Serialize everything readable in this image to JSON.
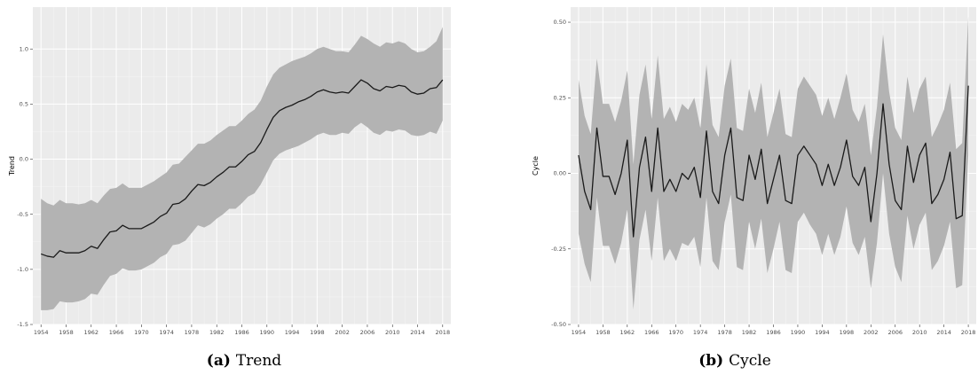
{
  "chart_data": [
    {
      "type": "line",
      "panel_id": "trend",
      "caption_tag": "(a)",
      "caption_text": "Trend",
      "ylabel": "Trend",
      "xlabel": "",
      "xlim": [
        1952.7,
        2019.3
      ],
      "ylim": [
        -1.5,
        1.38
      ],
      "x_ticks": [
        1954,
        1958,
        1962,
        1966,
        1970,
        1974,
        1978,
        1982,
        1986,
        1990,
        1994,
        1998,
        2002,
        2006,
        2010,
        2014,
        2018
      ],
      "y_ticks": [
        -1.5,
        -1.0,
        -0.5,
        0.0,
        0.5,
        1.0
      ],
      "y_tick_labels": [
        "-1.5",
        "-1.0",
        "-0.5",
        "0.0",
        "0.5",
        "1.0"
      ],
      "grid": true,
      "x": [
        1954,
        1955,
        1956,
        1957,
        1958,
        1959,
        1960,
        1961,
        1962,
        1963,
        1964,
        1965,
        1966,
        1967,
        1968,
        1969,
        1970,
        1971,
        1972,
        1973,
        1974,
        1975,
        1976,
        1977,
        1978,
        1979,
        1980,
        1981,
        1982,
        1983,
        1984,
        1985,
        1986,
        1987,
        1988,
        1989,
        1990,
        1991,
        1992,
        1993,
        1994,
        1995,
        1996,
        1997,
        1998,
        1999,
        2000,
        2001,
        2002,
        2003,
        2004,
        2005,
        2006,
        2007,
        2008,
        2009,
        2010,
        2011,
        2012,
        2013,
        2014,
        2015,
        2016,
        2017,
        2018
      ],
      "series": [
        {
          "role": "estimate",
          "color": "#1a1a1a",
          "values": [
            -0.86,
            -0.88,
            -0.89,
            -0.83,
            -0.85,
            -0.85,
            -0.85,
            -0.83,
            -0.79,
            -0.81,
            -0.73,
            -0.66,
            -0.65,
            -0.6,
            -0.63,
            -0.63,
            -0.63,
            -0.6,
            -0.57,
            -0.52,
            -0.49,
            -0.41,
            -0.4,
            -0.36,
            -0.29,
            -0.23,
            -0.24,
            -0.21,
            -0.16,
            -0.12,
            -0.07,
            -0.07,
            -0.02,
            0.04,
            0.07,
            0.15,
            0.27,
            0.38,
            0.44,
            0.47,
            0.49,
            0.52,
            0.54,
            0.57,
            0.61,
            0.63,
            0.61,
            0.6,
            0.61,
            0.6,
            0.66,
            0.72,
            0.69,
            0.64,
            0.62,
            0.66,
            0.65,
            0.67,
            0.66,
            0.61,
            0.59,
            0.6,
            0.64,
            0.65,
            0.72
          ]
        },
        {
          "role": "upper-band",
          "color": "#b3b3b3",
          "values": [
            -0.36,
            -0.4,
            -0.42,
            -0.37,
            -0.4,
            -0.4,
            -0.41,
            -0.4,
            -0.37,
            -0.4,
            -0.33,
            -0.27,
            -0.26,
            -0.22,
            -0.26,
            -0.26,
            -0.26,
            -0.23,
            -0.2,
            -0.16,
            -0.12,
            -0.05,
            -0.04,
            0.02,
            0.08,
            0.14,
            0.14,
            0.17,
            0.22,
            0.26,
            0.3,
            0.3,
            0.35,
            0.41,
            0.45,
            0.53,
            0.66,
            0.77,
            0.83,
            0.86,
            0.89,
            0.91,
            0.93,
            0.96,
            1.0,
            1.02,
            1.0,
            0.98,
            0.98,
            0.97,
            1.04,
            1.12,
            1.09,
            1.05,
            1.02,
            1.06,
            1.05,
            1.07,
            1.05,
            1.0,
            0.97,
            0.98,
            1.02,
            1.07,
            1.2
          ]
        },
        {
          "role": "lower-band",
          "color": "#b3b3b3",
          "values": [
            -1.37,
            -1.37,
            -1.36,
            -1.29,
            -1.3,
            -1.3,
            -1.29,
            -1.27,
            -1.22,
            -1.23,
            -1.14,
            -1.06,
            -1.04,
            -0.99,
            -1.01,
            -1.01,
            -1.0,
            -0.97,
            -0.94,
            -0.89,
            -0.86,
            -0.78,
            -0.77,
            -0.74,
            -0.67,
            -0.6,
            -0.62,
            -0.59,
            -0.54,
            -0.5,
            -0.45,
            -0.45,
            -0.4,
            -0.34,
            -0.31,
            -0.23,
            -0.12,
            -0.01,
            0.05,
            0.08,
            0.1,
            0.12,
            0.15,
            0.18,
            0.22,
            0.24,
            0.22,
            0.22,
            0.24,
            0.23,
            0.29,
            0.33,
            0.29,
            0.24,
            0.22,
            0.26,
            0.25,
            0.27,
            0.26,
            0.22,
            0.21,
            0.22,
            0.25,
            0.23,
            0.35
          ]
        }
      ]
    },
    {
      "type": "line",
      "panel_id": "cycle",
      "caption_tag": "(b)",
      "caption_text": "Cycle",
      "ylabel": "Cycle",
      "xlabel": "",
      "xlim": [
        1952.7,
        2019.3
      ],
      "ylim": [
        -0.5,
        0.55
      ],
      "x_ticks": [
        1954,
        1958,
        1962,
        1966,
        1970,
        1974,
        1978,
        1982,
        1986,
        1990,
        1994,
        1998,
        2002,
        2006,
        2010,
        2014,
        2018
      ],
      "y_ticks": [
        -0.5,
        -0.25,
        0.0,
        0.25,
        0.5
      ],
      "y_tick_labels": [
        "-0.50",
        "-0.25",
        "0.00",
        "0.25",
        "0.50"
      ],
      "grid": true,
      "x": [
        1954,
        1955,
        1956,
        1957,
        1958,
        1959,
        1960,
        1961,
        1962,
        1963,
        1964,
        1965,
        1966,
        1967,
        1968,
        1969,
        1970,
        1971,
        1972,
        1973,
        1974,
        1975,
        1976,
        1977,
        1978,
        1979,
        1980,
        1981,
        1982,
        1983,
        1984,
        1985,
        1986,
        1987,
        1988,
        1989,
        1990,
        1991,
        1992,
        1993,
        1994,
        1995,
        1996,
        1997,
        1998,
        1999,
        2000,
        2001,
        2002,
        2003,
        2004,
        2005,
        2006,
        2007,
        2008,
        2009,
        2010,
        2011,
        2012,
        2013,
        2014,
        2015,
        2016,
        2017,
        2018
      ],
      "series": [
        {
          "role": "estimate",
          "color": "#1a1a1a",
          "values": [
            0.06,
            -0.06,
            -0.12,
            0.15,
            -0.01,
            -0.01,
            -0.07,
            0.0,
            0.11,
            -0.21,
            0.02,
            0.12,
            -0.06,
            0.15,
            -0.06,
            -0.02,
            -0.06,
            0.0,
            -0.02,
            0.02,
            -0.08,
            0.14,
            -0.06,
            -0.1,
            0.06,
            0.15,
            -0.08,
            -0.09,
            0.06,
            -0.02,
            0.08,
            -0.1,
            -0.02,
            0.06,
            -0.09,
            -0.1,
            0.06,
            0.09,
            0.06,
            0.03,
            -0.04,
            0.03,
            -0.04,
            0.02,
            0.11,
            -0.01,
            -0.04,
            0.02,
            -0.16,
            0.0,
            0.23,
            0.03,
            -0.09,
            -0.12,
            0.09,
            -0.03,
            0.06,
            0.1,
            -0.1,
            -0.07,
            -0.02,
            0.07,
            -0.15,
            -0.14,
            0.29
          ]
        },
        {
          "role": "upper-band",
          "color": "#b3b3b3",
          "values": [
            0.31,
            0.19,
            0.13,
            0.38,
            0.23,
            0.23,
            0.17,
            0.24,
            0.34,
            0.03,
            0.26,
            0.36,
            0.18,
            0.39,
            0.18,
            0.22,
            0.17,
            0.23,
            0.21,
            0.25,
            0.15,
            0.36,
            0.16,
            0.12,
            0.29,
            0.38,
            0.15,
            0.14,
            0.28,
            0.2,
            0.3,
            0.12,
            0.2,
            0.28,
            0.13,
            0.12,
            0.28,
            0.32,
            0.29,
            0.26,
            0.19,
            0.25,
            0.18,
            0.25,
            0.33,
            0.21,
            0.17,
            0.23,
            0.06,
            0.22,
            0.46,
            0.27,
            0.15,
            0.11,
            0.32,
            0.2,
            0.28,
            0.32,
            0.12,
            0.16,
            0.21,
            0.3,
            0.08,
            0.1,
            0.52
          ]
        },
        {
          "role": "lower-band",
          "color": "#b3b3b3",
          "values": [
            -0.2,
            -0.3,
            -0.36,
            -0.08,
            -0.24,
            -0.24,
            -0.3,
            -0.23,
            -0.12,
            -0.45,
            -0.22,
            -0.12,
            -0.29,
            -0.08,
            -0.29,
            -0.25,
            -0.29,
            -0.23,
            -0.24,
            -0.21,
            -0.31,
            -0.08,
            -0.29,
            -0.32,
            -0.16,
            -0.07,
            -0.31,
            -0.32,
            -0.16,
            -0.25,
            -0.15,
            -0.33,
            -0.25,
            -0.16,
            -0.32,
            -0.33,
            -0.16,
            -0.13,
            -0.17,
            -0.2,
            -0.27,
            -0.2,
            -0.27,
            -0.21,
            -0.11,
            -0.23,
            -0.27,
            -0.21,
            -0.38,
            -0.23,
            0.0,
            -0.2,
            -0.31,
            -0.36,
            -0.14,
            -0.25,
            -0.17,
            -0.13,
            -0.32,
            -0.29,
            -0.24,
            -0.16,
            -0.38,
            -0.37,
            0.06
          ]
        }
      ]
    }
  ]
}
